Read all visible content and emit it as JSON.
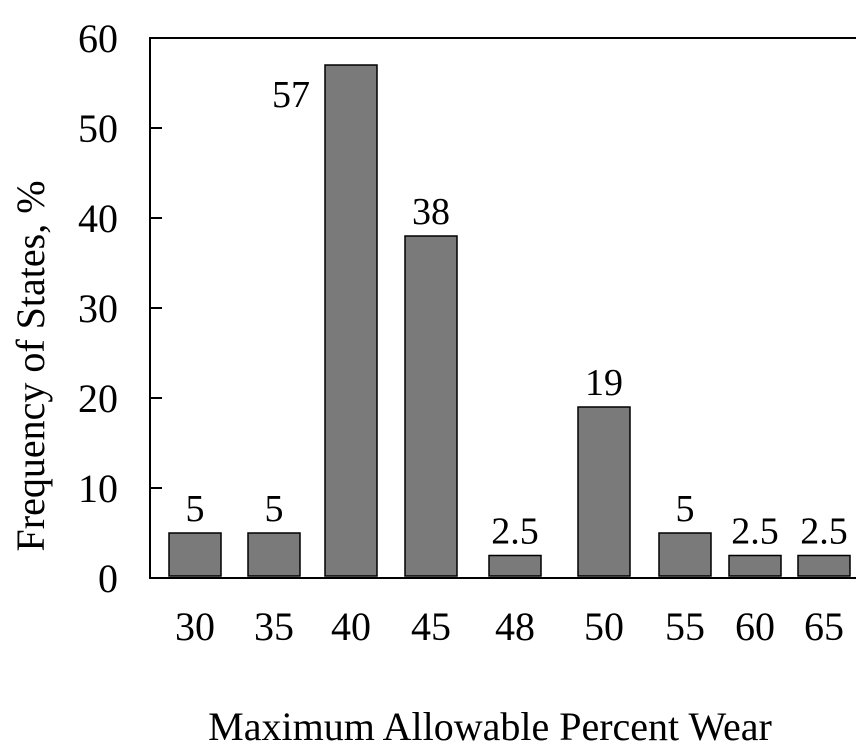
{
  "chart_data": {
    "type": "bar",
    "title": "",
    "xlabel": "Maximum Allowable Percent Wear",
    "ylabel": "Frequency of States, %",
    "ylim": [
      0,
      60
    ],
    "yticks": [
      0,
      10,
      20,
      30,
      40,
      50,
      60
    ],
    "grid": false,
    "categories": [
      "30",
      "35",
      "40",
      "45",
      "48",
      "50",
      "55",
      "60",
      "65"
    ],
    "values": [
      5,
      5,
      57,
      38,
      2.5,
      19,
      5,
      2.5,
      2.5
    ],
    "data_labels": [
      "5",
      "5",
      "57",
      "38",
      "2.5",
      "19",
      "5",
      "2.5",
      "2.5"
    ],
    "bar_color": "#7a7a7a"
  }
}
